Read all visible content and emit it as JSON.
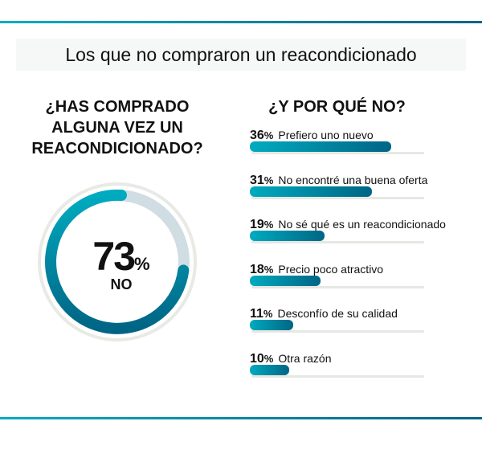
{
  "header": {
    "title": "Los que no compraron un reacondicionado"
  },
  "colors": {
    "accent_start": "#00abbf",
    "accent_end": "#006585",
    "ring_remainder": "#d0dde3",
    "track": "#e6e8e3"
  },
  "chart_data": [
    {
      "type": "pie",
      "title": "¿HAS COMPRADO ALGUNA VEZ UN REACONDICIONADO?",
      "title_lines": [
        "¿HAS COMPRADO",
        "ALGUNA VEZ UN",
        "REACONDICIONADO?"
      ],
      "value": 73,
      "value_label": "73",
      "unit": "%",
      "category": "NO"
    },
    {
      "type": "bar",
      "orientation": "horizontal",
      "title": "¿Y POR QUÉ NO?",
      "categories": [
        "Prefiero uno nuevo",
        "No encontré una buena oferta",
        "No sé qué es un reacondicionado",
        "Precio poco atractivo",
        "Desconfío de su calidad",
        "Otra razón"
      ],
      "values": [
        36,
        31,
        19,
        18,
        11,
        10
      ],
      "unit": "%"
    }
  ]
}
